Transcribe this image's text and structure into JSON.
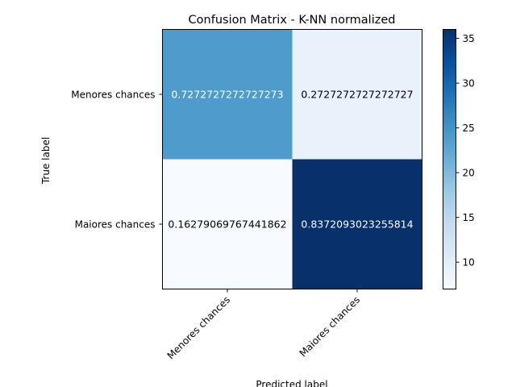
{
  "chart_data": {
    "type": "heatmap",
    "title": "Confusion Matrix - K-NN normalized",
    "xlabel": "Predicted label",
    "ylabel": "True label",
    "x_categories": [
      "Menores chances",
      "Maiores chances"
    ],
    "y_categories": [
      "Menores chances",
      "Maiores chances"
    ],
    "values": [
      [
        0.7272727272727273,
        0.2727272727272727
      ],
      [
        0.16279069767441862,
        0.8372093023255814
      ]
    ],
    "cell_labels": [
      [
        "0.7272727272727273",
        "0.2727272727272727"
      ],
      [
        "0.16279069767441862",
        "0.8372093023255814"
      ]
    ],
    "color_values": [
      [
        24,
        9
      ],
      [
        7,
        36
      ]
    ],
    "colorbar": {
      "range": [
        7,
        36
      ],
      "ticks": [
        10,
        15,
        20,
        25,
        30,
        35
      ],
      "tick_labels": [
        "10",
        "15",
        "20",
        "25",
        "30",
        "35"
      ],
      "colormap": "Blues"
    },
    "grid": false,
    "legend": "none"
  }
}
